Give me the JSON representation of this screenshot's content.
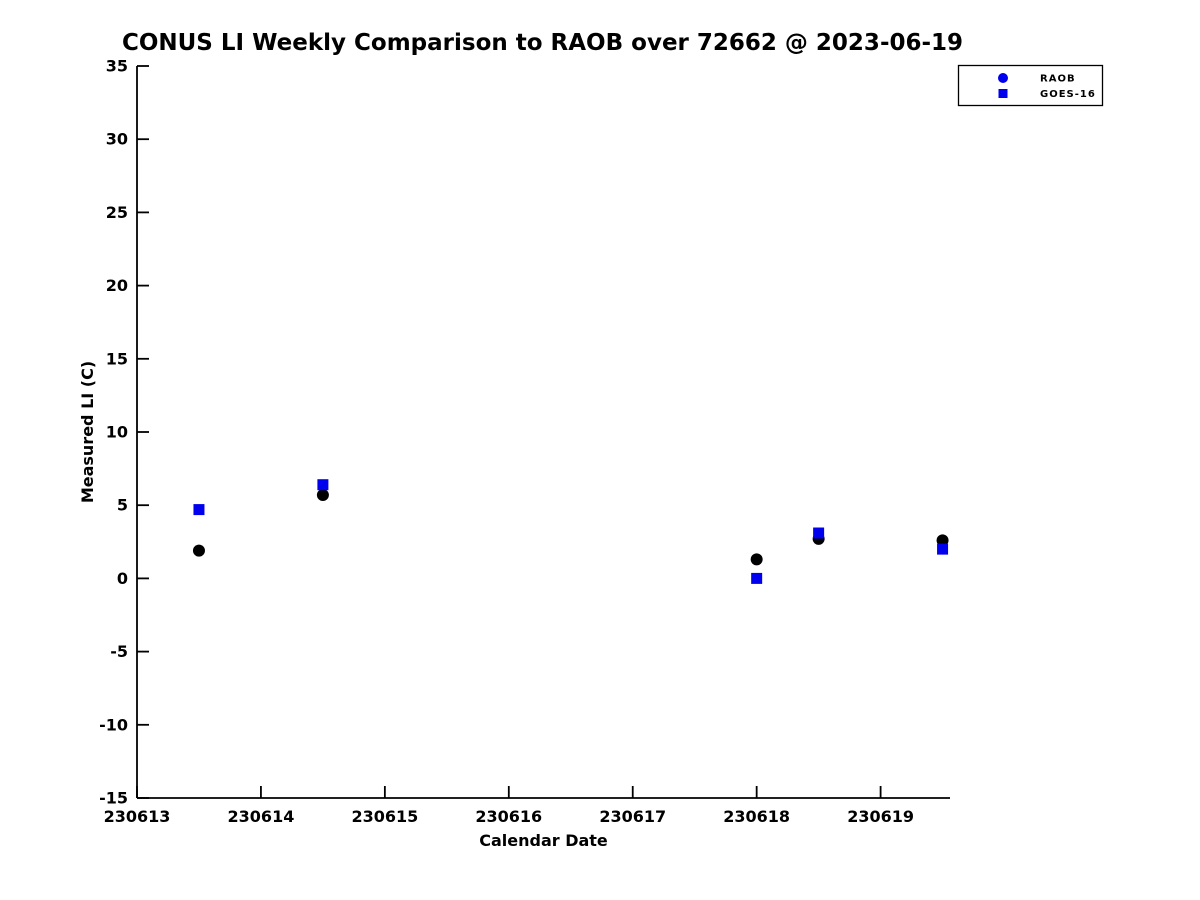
{
  "chart_data": {
    "type": "scatter",
    "title": "CONUS LI Weekly Comparison to RAOB over 72662 @ 2023-06-19",
    "xlabel": "Calendar Date",
    "ylabel": "Measured LI (C)",
    "xlim": [
      230613,
      230619.56
    ],
    "ylim": [
      -15,
      35
    ],
    "xticks": [
      230613,
      230614,
      230615,
      230616,
      230617,
      230618,
      230619
    ],
    "yticks": [
      -15,
      -10,
      -5,
      0,
      5,
      10,
      15,
      20,
      25,
      30,
      35
    ],
    "grid": false,
    "legend": {
      "position": "top-right",
      "entries": [
        {
          "label": "RAOB",
          "marker": "circle",
          "color": "#0000EE"
        },
        {
          "label": "GOES-16",
          "marker": "square",
          "color": "#0000EE"
        }
      ]
    },
    "series": [
      {
        "name": "RAOB",
        "marker": "circle",
        "color": "#000000",
        "x": [
          230613.5,
          230614.5,
          230618.0,
          230618.5,
          230619.5
        ],
        "y": [
          1.9,
          5.7,
          1.3,
          2.7,
          2.6
        ]
      },
      {
        "name": "GOES-16",
        "marker": "square",
        "color": "#0000EE",
        "x": [
          230613.5,
          230614.5,
          230618.0,
          230618.5,
          230619.5
        ],
        "y": [
          4.7,
          6.4,
          0.0,
          3.1,
          2.0
        ]
      }
    ],
    "colors": {
      "background": "#ffffff",
      "axis": "#000000",
      "marker_blue": "#0000EE",
      "marker_black": "#000000"
    }
  }
}
